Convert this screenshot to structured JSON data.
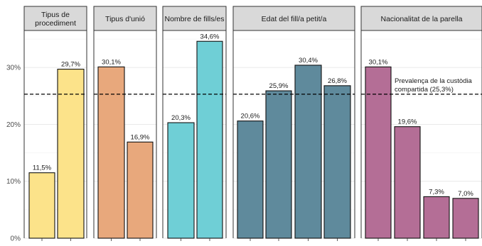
{
  "chart_data": {
    "type": "bar",
    "y_axis": {
      "ylim": [
        0,
        36.5
      ],
      "ticks": [
        0,
        10,
        20,
        30
      ],
      "tick_labels": [
        "0%",
        "10%",
        "20%",
        "30%"
      ]
    },
    "reference_line": {
      "value": 25.3,
      "style": "dashed",
      "label_lines": [
        "Prevalença de la custòdia",
        "compartida (25,3%)"
      ]
    },
    "panels": [
      {
        "title_lines": [
          "Tipus de",
          "procediment"
        ],
        "color": "#FCE38A",
        "values": [
          11.5,
          29.7
        ],
        "labels": [
          "11,5%",
          "29,7%"
        ]
      },
      {
        "title_lines": [
          "Tipus d'unió"
        ],
        "color": "#E8A87C",
        "values": [
          30.1,
          16.9
        ],
        "labels": [
          "30,1%",
          "16,9%"
        ]
      },
      {
        "title_lines": [
          "Nombre de fills/es"
        ],
        "color": "#6FCFD6",
        "values": [
          20.3,
          34.6
        ],
        "labels": [
          "20,3%",
          "34,6%"
        ]
      },
      {
        "title_lines": [
          "Edat del fill/a petit/a"
        ],
        "color": "#5F8A9C",
        "values": [
          20.6,
          25.9,
          30.4,
          26.8
        ],
        "labels": [
          "20,6%",
          "25,9%",
          "30,4%",
          "26,8%"
        ]
      },
      {
        "title_lines": [
          "Nacionalitat de la parella"
        ],
        "color": "#B46E96",
        "values": [
          30.1,
          19.6,
          7.3,
          7.0
        ],
        "labels": [
          "30,1%",
          "19,6%",
          "7,3%",
          "7,0%"
        ]
      }
    ],
    "grid": true,
    "legend": "none"
  }
}
